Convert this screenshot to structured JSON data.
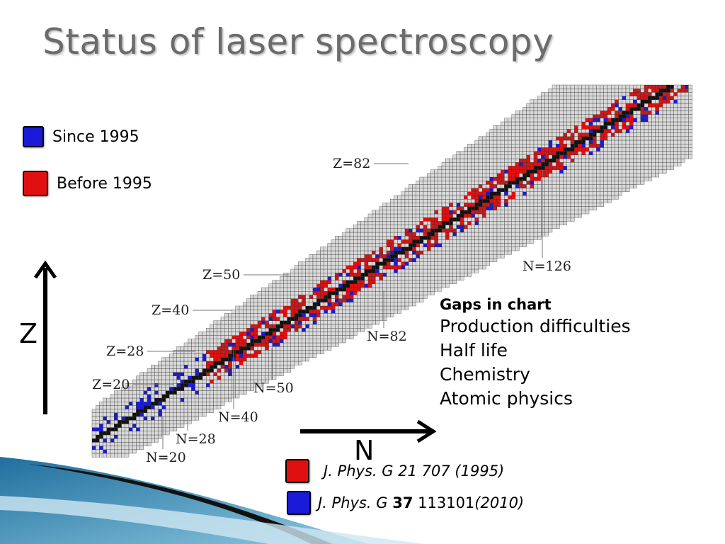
{
  "slide": {
    "title": "Status of laser spectroscopy"
  },
  "legend": [
    {
      "label": "Since 1995",
      "color": "#1a1ad8"
    },
    {
      "label": "Before 1995",
      "color": "#e01010"
    }
  ],
  "axes": {
    "vertical_label": "Z",
    "horizontal_label": "N"
  },
  "chart": {
    "z_labels": [
      "Z=82",
      "Z=50",
      "Z=40",
      "Z=28",
      "Z=20"
    ],
    "n_labels": [
      "N=126",
      "N=82",
      "N=50",
      "N=40",
      "N=28",
      "N=20"
    ],
    "colors": {
      "measured_new": "#1a1ad8",
      "measured_old": "#e01010",
      "stable": "#111111",
      "grid": "#333333",
      "fill": "#d9d9d9"
    }
  },
  "gaps": {
    "heading": "Gaps in chart",
    "items": [
      "Production difficulties",
      "Half life",
      "Chemistry",
      "Atomic physics"
    ]
  },
  "references": [
    {
      "journal": "J. Phys. G",
      "volume": "21",
      "pages": "707",
      "year": "(1995)",
      "color": "#e01010"
    },
    {
      "journal": "J. Phys. G",
      "volume": "37",
      "pages": "113101",
      "year": "(2010)",
      "color": "#1a1ad8"
    }
  ]
}
